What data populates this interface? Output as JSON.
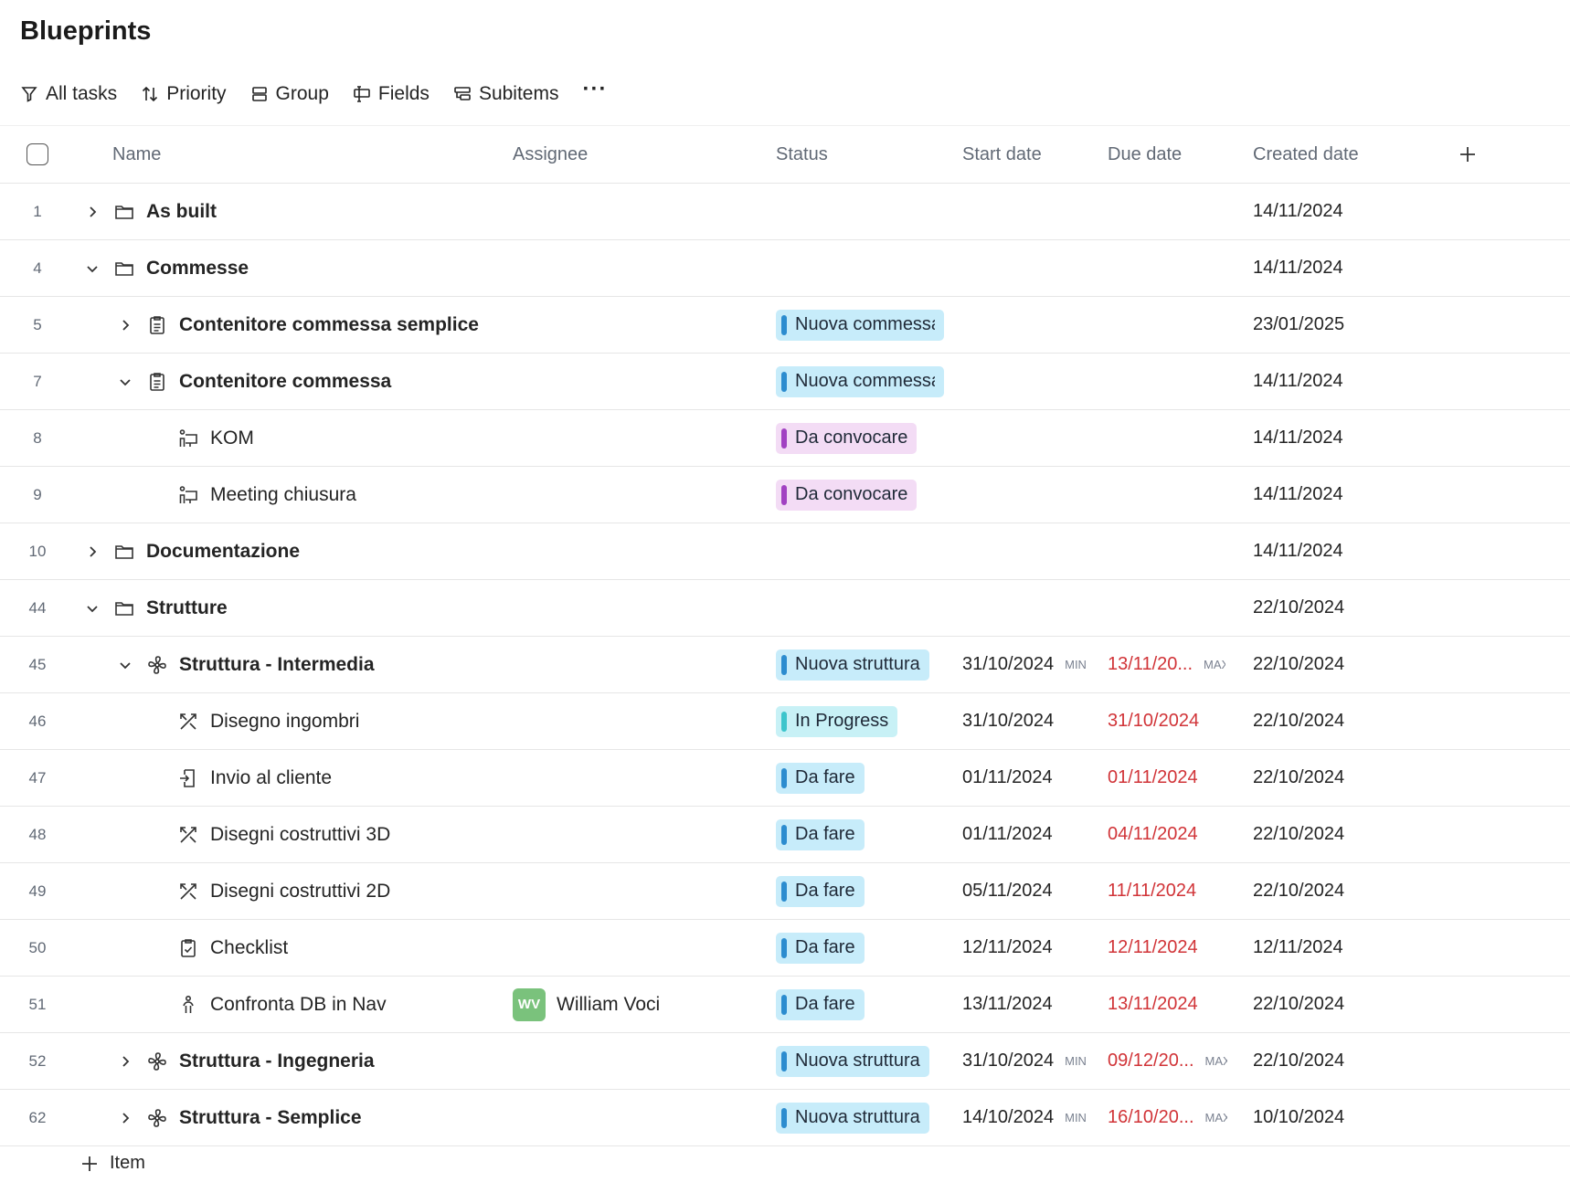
{
  "page": {
    "title": "Blueprints"
  },
  "toolbar": {
    "all_tasks": "All tasks",
    "priority": "Priority",
    "group": "Group",
    "fields": "Fields",
    "subitems": "Subitems",
    "more": "···"
  },
  "columns": {
    "name": "Name",
    "assignee": "Assignee",
    "status": "Status",
    "start": "Start date",
    "due": "Due date",
    "created": "Created date"
  },
  "rows": [
    {
      "num": "1",
      "name": "As built",
      "created": "14/11/2024"
    },
    {
      "num": "4",
      "name": "Commesse",
      "created": "14/11/2024"
    },
    {
      "num": "5",
      "name": "Contenitore commessa semplice",
      "status": "Nuova commessa",
      "created": "23/01/2025"
    },
    {
      "num": "7",
      "name": "Contenitore commessa",
      "status": "Nuova commessa",
      "created": "14/11/2024"
    },
    {
      "num": "8",
      "name": "KOM",
      "status": "Da convocare",
      "created": "14/11/2024"
    },
    {
      "num": "9",
      "name": "Meeting chiusura",
      "status": "Da convocare",
      "created": "14/11/2024"
    },
    {
      "num": "10",
      "name": "Documentazione",
      "created": "14/11/2024"
    },
    {
      "num": "44",
      "name": "Strutture",
      "created": "22/10/2024"
    },
    {
      "num": "45",
      "name": "Struttura - Intermedia",
      "status": "Nuova struttura",
      "start": "31/10/2024",
      "start_tag": "MIN",
      "due": "13/11/20...",
      "due_tag": "MAX",
      "created": "22/10/2024"
    },
    {
      "num": "46",
      "name": "Disegno ingombri",
      "status": "In Progress",
      "start": "31/10/2024",
      "due": "31/10/2024",
      "created": "22/10/2024"
    },
    {
      "num": "47",
      "name": "Invio al cliente",
      "status": "Da fare",
      "start": "01/11/2024",
      "due": "01/11/2024",
      "created": "22/10/2024"
    },
    {
      "num": "48",
      "name": "Disegni costruttivi 3D",
      "status": "Da fare",
      "start": "01/11/2024",
      "due": "04/11/2024",
      "created": "22/10/2024"
    },
    {
      "num": "49",
      "name": "Disegni costruttivi 2D",
      "status": "Da fare",
      "start": "05/11/2024",
      "due": "11/11/2024",
      "created": "22/10/2024"
    },
    {
      "num": "50",
      "name": "Checklist",
      "status": "Da fare",
      "start": "12/11/2024",
      "due": "12/11/2024",
      "created": "12/11/2024"
    },
    {
      "num": "51",
      "name": "Confronta DB in Nav",
      "assignee_initials": "WV",
      "assignee": "William Voci",
      "status": "Da fare",
      "start": "13/11/2024",
      "due": "13/11/2024",
      "created": "22/10/2024"
    },
    {
      "num": "52",
      "name": "Struttura - Ingegneria",
      "status": "Nuova struttura",
      "start": "31/10/2024",
      "start_tag": "MIN",
      "due": "09/12/20...",
      "due_tag": "MAX",
      "created": "22/10/2024"
    },
    {
      "num": "62",
      "name": "Struttura - Semplice",
      "status": "Nuova struttura",
      "start": "14/10/2024",
      "start_tag": "MIN",
      "due": "16/10/20...",
      "due_tag": "MAX",
      "created": "10/10/2024"
    }
  ],
  "add_item": "Item",
  "colors": {
    "status_blue": "#c7ecfa",
    "status_purple": "#f3dcf5",
    "status_teal": "#c8f1f6",
    "due_red": "#d13438",
    "avatar_green": "#7ac27c"
  }
}
